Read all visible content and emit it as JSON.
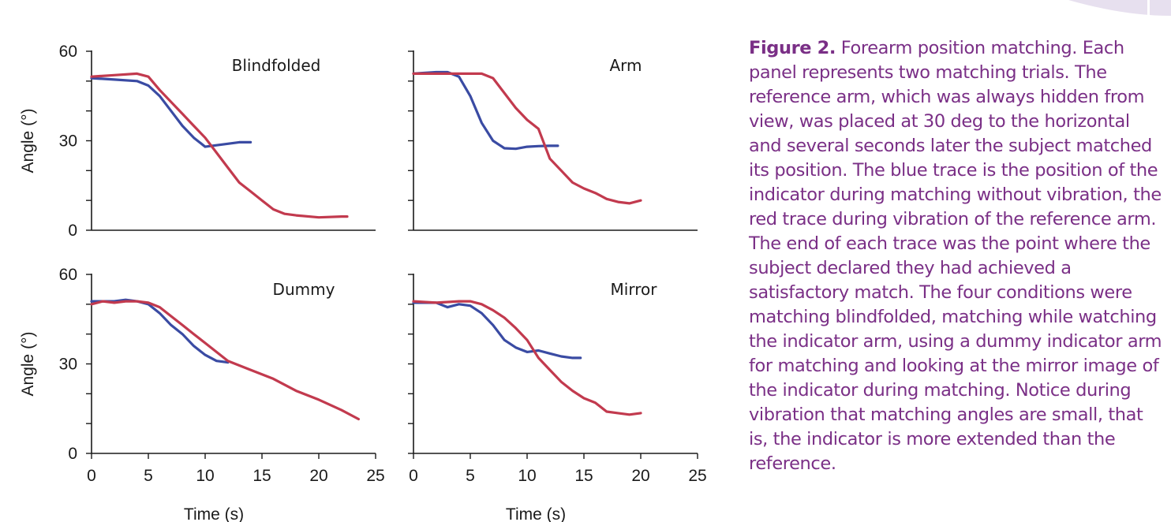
{
  "colors": {
    "blue": "#3a4ba3",
    "red": "#c23a4e",
    "axis": "#1a1a1a",
    "caption": "#7a2f86",
    "decoration": "#e7e0ef"
  },
  "caption": {
    "lead": "Figure 2.",
    "text": "Forearm position matching. Each panel represents two matching trials. The reference arm, which was always hidden from view, was placed at 30 deg to the horizontal and several seconds later the subject matched its position. The blue trace is the position of the indicator during matching without vibration, the red trace during vibration of the reference arm. The end of each trace was the point where the subject declared they had achieved a satisfactory match. The four conditions were matching blindfolded, matching while watching the indicator arm, using a dummy indicator arm for matching and looking at the mirror image of the indicator during matching. Notice during vibration that matching angles are small, that is, the indicator is more extended than the reference."
  },
  "chart_data": [
    {
      "type": "line",
      "title": "Blindfolded",
      "xlabel": "",
      "ylabel": "Angle (°)",
      "xlim": [
        0,
        25
      ],
      "ylim": [
        0,
        60
      ],
      "yticks": [
        0,
        30,
        60
      ],
      "xticks": [],
      "series": [
        {
          "color": "blue",
          "x": [
            0,
            2,
            4,
            5,
            6,
            7,
            8,
            9,
            10,
            11,
            12,
            13,
            14
          ],
          "y": [
            51,
            50.5,
            50,
            48.5,
            45,
            40,
            35,
            31,
            28,
            28.5,
            29,
            29.5,
            29.5
          ]
        },
        {
          "color": "red",
          "x": [
            0,
            2,
            4,
            5,
            6,
            7,
            8,
            9,
            10,
            11,
            12,
            13,
            14,
            15,
            16,
            17,
            18,
            20,
            22,
            22.5
          ],
          "y": [
            51.5,
            52,
            52.5,
            51.5,
            47,
            43,
            39,
            35,
            31,
            26,
            21,
            16,
            13,
            10,
            7,
            5.5,
            5,
            4.3,
            4.6,
            4.6
          ]
        }
      ]
    },
    {
      "type": "line",
      "title": "Arm",
      "xlabel": "",
      "ylabel": "",
      "xlim": [
        0,
        25
      ],
      "ylim": [
        0,
        60
      ],
      "yticks": [],
      "xticks": [],
      "series": [
        {
          "color": "blue",
          "x": [
            0,
            2,
            3,
            4,
            5,
            6,
            7,
            8,
            9,
            10,
            11,
            12,
            12.7
          ],
          "y": [
            52.5,
            53,
            53,
            51.5,
            45,
            36,
            30,
            27.5,
            27.3,
            28,
            28.2,
            28.3,
            28.3
          ]
        },
        {
          "color": "red",
          "x": [
            0,
            2,
            4,
            6,
            7,
            8,
            9,
            10,
            11,
            11.5,
            12,
            13,
            14,
            15,
            16,
            17,
            18,
            19,
            20
          ],
          "y": [
            52.5,
            52.5,
            52.5,
            52.5,
            51,
            46,
            41,
            37,
            34,
            29,
            24,
            20,
            16,
            14,
            12.5,
            10.5,
            9.5,
            9,
            10
          ]
        }
      ]
    },
    {
      "type": "line",
      "title": "Dummy",
      "xlabel": "Time (s)",
      "ylabel": "Angle (°)",
      "xlim": [
        0,
        25
      ],
      "ylim": [
        0,
        60
      ],
      "yticks": [
        0,
        30,
        60
      ],
      "xticks": [
        0,
        5,
        10,
        15,
        20,
        25
      ],
      "series": [
        {
          "color": "blue",
          "x": [
            0,
            2,
            3,
            4,
            5,
            6,
            7,
            8,
            9,
            10,
            11,
            12
          ],
          "y": [
            51,
            51,
            51.5,
            51,
            50,
            47,
            43,
            40,
            36,
            33,
            31,
            30.5
          ]
        },
        {
          "color": "red",
          "x": [
            0,
            1,
            2,
            3,
            4,
            5,
            6,
            7,
            8,
            9,
            10,
            11,
            12,
            14,
            16,
            18,
            20,
            22,
            23.5
          ],
          "y": [
            50,
            51,
            50.5,
            51,
            51,
            50.5,
            49,
            46,
            43,
            40,
            37,
            34,
            31,
            28,
            25,
            21,
            18,
            14.5,
            11.5
          ]
        }
      ]
    },
    {
      "type": "line",
      "title": "Mirror",
      "xlabel": "Time (s)",
      "ylabel": "",
      "xlim": [
        0,
        25
      ],
      "ylim": [
        0,
        60
      ],
      "yticks": [],
      "xticks": [
        0,
        5,
        10,
        15,
        20,
        25
      ],
      "series": [
        {
          "color": "blue",
          "x": [
            0,
            2,
            3,
            4,
            5,
            6,
            7,
            8,
            9,
            10,
            11,
            12,
            13,
            14,
            14.7
          ],
          "y": [
            50.5,
            50.5,
            49,
            50,
            49.5,
            47,
            43,
            38,
            35.5,
            34,
            34.5,
            33.5,
            32.5,
            32,
            32
          ]
        },
        {
          "color": "red",
          "x": [
            0,
            2,
            4,
            5,
            6,
            7,
            8,
            9,
            10,
            11,
            12,
            13,
            14,
            15,
            16,
            17,
            18,
            19,
            20
          ],
          "y": [
            51,
            50.5,
            51,
            51,
            50,
            48,
            45.5,
            42,
            38,
            32,
            28,
            24,
            21,
            18.5,
            17,
            14,
            13.5,
            13,
            13.5
          ]
        }
      ]
    }
  ]
}
